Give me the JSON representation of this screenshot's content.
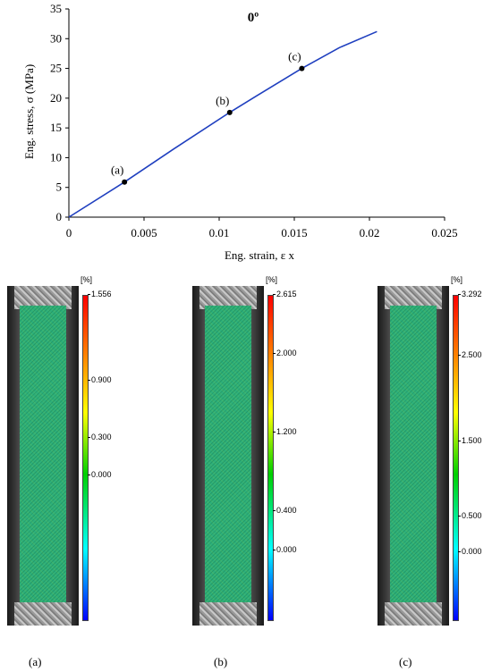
{
  "chart_data": {
    "type": "line",
    "title": "0º",
    "xlabel": "Eng. strain, ε x",
    "ylabel": "Eng. stress, σ (MPa)",
    "xlim": [
      0,
      0.025
    ],
    "ylim": [
      0,
      35
    ],
    "xticks": [
      "0",
      "0.005",
      "0.01",
      "0.015",
      "0.02",
      "0.025"
    ],
    "yticks": [
      "0",
      "5",
      "10",
      "15",
      "20",
      "25",
      "30",
      "35"
    ],
    "x": [
      0,
      0.0037,
      0.007,
      0.0107,
      0.0125,
      0.0155,
      0.018,
      0.0205
    ],
    "y": [
      0,
      5.9,
      11.5,
      17.6,
      20.4,
      25.0,
      28.5,
      31.2
    ],
    "points": [
      {
        "label": "(a)",
        "x": 0.0037,
        "y": 5.9
      },
      {
        "label": "(b)",
        "x": 0.0107,
        "y": 17.6
      },
      {
        "label": "(c)",
        "x": 0.0155,
        "y": 25.0
      }
    ],
    "color": "#1f3fbf"
  },
  "panels": [
    {
      "label": "(a)",
      "unit": "[%]",
      "ticks": [
        "1.556",
        "0.900",
        "0.300",
        "0.000"
      ]
    },
    {
      "label": "(b)",
      "unit": "[%]",
      "ticks": [
        "2.615",
        "2.000",
        "1.200",
        "0.400",
        "0.000"
      ]
    },
    {
      "label": "(c)",
      "unit": "[%]",
      "ticks": [
        "3.292",
        "2.500",
        "1.500",
        "0.500",
        "0.000"
      ]
    }
  ]
}
